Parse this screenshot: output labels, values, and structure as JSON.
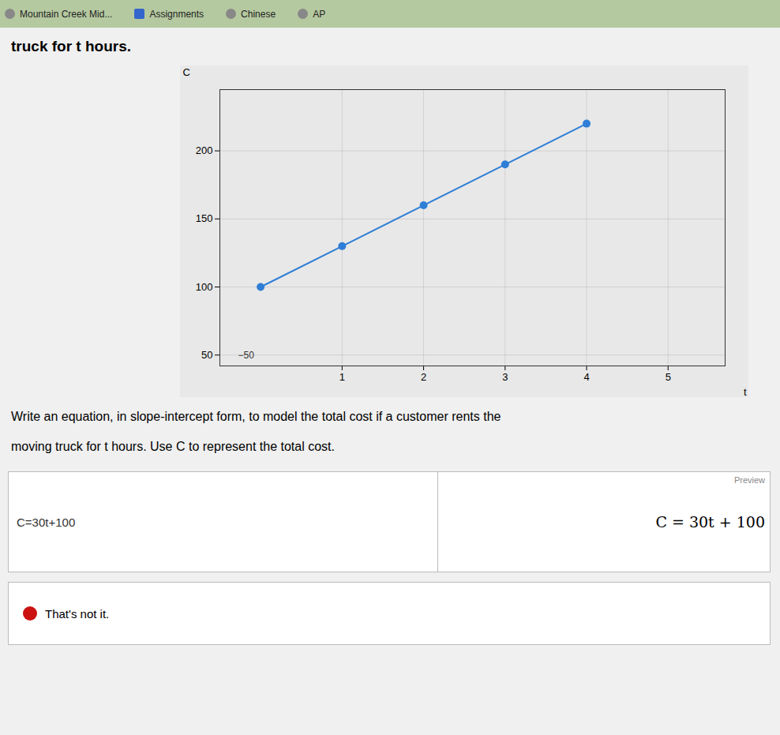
{
  "chart_data": {
    "type": "line",
    "title": "truck for t hours.",
    "subtitle": "Write an equation, in slope-intercept form, to model the total cost if a customer rents the moving truck for ⁢t⁢ hours. Use ⁢C⁢ to represent the total cost.",
    "xlabel": "t",
    "ylabel": "C",
    "x": [
      0,
      1,
      2,
      3,
      4
    ],
    "values": [
      100,
      130,
      160,
      190,
      220
    ],
    "color": "#2e7ed6",
    "marker": "o",
    "xlim": [
      -0.5,
      5.7
    ],
    "ylim": [
      42,
      245
    ],
    "xticks": [
      1,
      2,
      3,
      4,
      5
    ],
    "yticks": [
      50,
      100,
      150,
      200
    ],
    "grid": true,
    "annotations": [
      {
        "text": "Mountain Creek Mid..."
      },
      {
        "text": "Assignments"
      },
      {
        "text": "Chinese"
      },
      {
        "text": "AP"
      },
      {
        "text": "C=30t+100"
      },
      {
        "text": "Preview"
      },
      {
        "text": "C = 30t + 100"
      },
      {
        "text": "That's not it."
      },
      {
        "text": "−50",
        "x": -0.08,
        "y": 50
      }
    ]
  }
}
